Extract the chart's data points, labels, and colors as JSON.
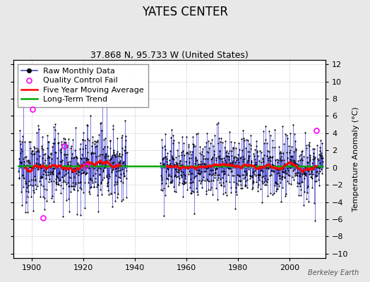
{
  "title": "YATES CENTER",
  "subtitle": "37.868 N, 95.733 W (United States)",
  "ylabel": "Temperature Anomaly (°C)",
  "attribution": "Berkeley Earth",
  "xlim": [
    1893,
    2014
  ],
  "ylim": [
    -10.5,
    12.5
  ],
  "yticks": [
    -10,
    -8,
    -6,
    -4,
    -2,
    0,
    2,
    4,
    6,
    8,
    10,
    12
  ],
  "xticks": [
    1900,
    1920,
    1940,
    1960,
    1980,
    2000
  ],
  "period1_start": 1895,
  "period1_end": 1937,
  "period2_start": 1950,
  "period2_end": 2013,
  "background_color": "#e8e8e8",
  "plot_bg_color": "#ffffff",
  "raw_line_color": "#4444cc",
  "raw_marker_color": "#000000",
  "qc_fail_color": "#ff00ff",
  "moving_avg_color": "#ff0000",
  "trend_color": "#00aa00",
  "title_fontsize": 12,
  "subtitle_fontsize": 9,
  "legend_fontsize": 8,
  "tick_fontsize": 8,
  "ylabel_fontsize": 8,
  "seed": 12345,
  "noise_scale1": 2.2,
  "noise_scale2": 1.9
}
